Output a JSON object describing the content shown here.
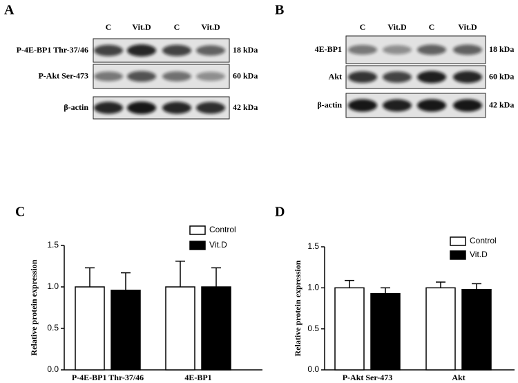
{
  "blots": [
    {
      "label": "A",
      "lanes": [
        "C",
        "Vit.D",
        "C",
        "Vit.D"
      ],
      "rows": [
        {
          "name": "P-4E-BP1 Thr-37/46",
          "size": "18 kDa"
        },
        {
          "name": "P-Akt Ser-473",
          "size": "60 kDa"
        },
        {
          "name": "β-actin",
          "size": "42 kDa"
        }
      ]
    },
    {
      "label": "B",
      "lanes": [
        "C",
        "Vit.D",
        "C",
        "Vit.D"
      ],
      "rows": [
        {
          "name": "4E-BP1",
          "size": "18 kDa"
        },
        {
          "name": "Akt",
          "size": "60 kDa"
        },
        {
          "name": "β-actin",
          "size": "42 kDa"
        }
      ]
    }
  ],
  "chart_data": [
    {
      "type": "bar",
      "panel_label": "C",
      "y_label": "Relative protein expression",
      "categories": [
        "P-4E-BP1 Thr-37/46",
        "4E-BP1"
      ],
      "series": [
        {
          "name": "Control",
          "color": "#ffffff",
          "values": [
            1.0,
            1.0
          ],
          "errors": [
            0.23,
            0.31
          ]
        },
        {
          "name": "Vit.D",
          "color": "#000000",
          "values": [
            0.96,
            1.0
          ],
          "errors": [
            0.21,
            0.23
          ]
        }
      ],
      "ylim": [
        0,
        1.5
      ],
      "yticks": [
        {
          "value": 0,
          "label": "0.0"
        },
        0.5,
        {
          "value": 1,
          "label": "1.0"
        },
        1.5
      ]
    },
    {
      "type": "bar",
      "panel_label": "D",
      "y_label": "Relative protein expression",
      "categories": [
        "P-Akt Ser-473",
        "Akt"
      ],
      "series": [
        {
          "name": "Control",
          "color": "#ffffff",
          "values": [
            1.0,
            1.0
          ],
          "errors": [
            0.09,
            0.07
          ]
        },
        {
          "name": "Vit.D",
          "color": "#000000",
          "values": [
            0.93,
            0.98
          ],
          "errors": [
            0.07,
            0.07
          ]
        }
      ],
      "ylim": [
        0,
        1.5
      ],
      "yticks": [
        {
          "value": 0,
          "label": "0.0"
        },
        0.5,
        {
          "value": 1,
          "label": "1.0"
        },
        1.5
      ]
    }
  ]
}
